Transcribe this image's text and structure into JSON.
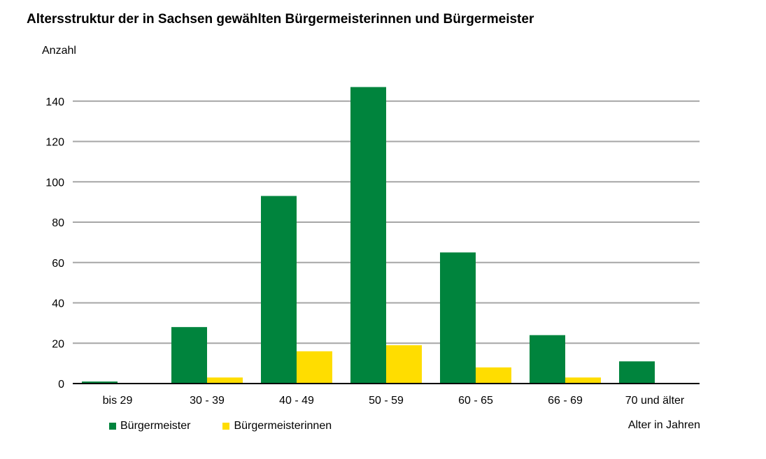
{
  "chart_data": {
    "type": "bar",
    "title": "Altersstruktur der in Sachsen gewählten Bürgermeisterinnen und Bürgermeister",
    "ylabel": "Anzahl",
    "xlabel": "Alter in Jahren",
    "categories": [
      "bis 29",
      "30 - 39",
      "40 - 49",
      "50 - 59",
      "60 - 65",
      "66 - 69",
      "70 und älter"
    ],
    "series": [
      {
        "name": "Bürgermeister",
        "color": "#00843d",
        "values": [
          1,
          28,
          93,
          147,
          65,
          24,
          11
        ]
      },
      {
        "name": "Bürgermeisterinnen",
        "color": "#ffdd00",
        "values": [
          0,
          3,
          16,
          19,
          8,
          3,
          0
        ]
      }
    ],
    "ylim": [
      0,
      140
    ],
    "yticks": [
      0,
      20,
      40,
      60,
      80,
      100,
      120,
      140
    ],
    "grid": true,
    "legend_position": "bottom-left"
  }
}
